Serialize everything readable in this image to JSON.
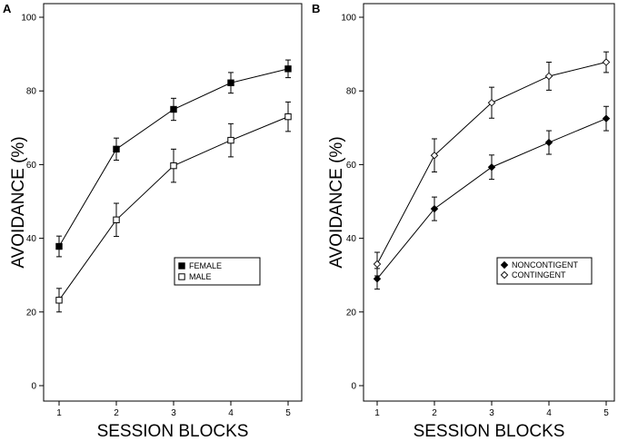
{
  "chart_data": [
    {
      "type": "line",
      "panel_label": "A",
      "xlabel": "SESSION BLOCKS",
      "ylabel": "AVOIDANCE (%)",
      "x": [
        1,
        2,
        3,
        4,
        5
      ],
      "xticks": [
        "1",
        "2",
        "3",
        "4",
        "5"
      ],
      "ylim": [
        0,
        100
      ],
      "yticks": [
        "0",
        "20",
        "40",
        "60",
        "80",
        "100"
      ],
      "legend_position": "lower-right",
      "series": [
        {
          "name": "FEMALE",
          "marker": "filled-square",
          "values": [
            37.8,
            64.2,
            75.0,
            82.2,
            86.0
          ],
          "error": [
            2.8,
            3.0,
            3.0,
            2.8,
            2.4
          ]
        },
        {
          "name": "MALE",
          "marker": "open-square",
          "values": [
            23.2,
            45.0,
            59.7,
            66.6,
            73.0
          ],
          "error": [
            3.2,
            4.5,
            4.5,
            4.5,
            4.0
          ]
        }
      ]
    },
    {
      "type": "line",
      "panel_label": "B",
      "xlabel": "SESSION BLOCKS",
      "ylabel": "AVOIDANCE (%)",
      "x": [
        1,
        2,
        3,
        4,
        5
      ],
      "xticks": [
        "1",
        "2",
        "3",
        "4",
        "5"
      ],
      "ylim": [
        0,
        100
      ],
      "yticks": [
        "0",
        "20",
        "40",
        "60",
        "80",
        "100"
      ],
      "legend_position": "lower-right",
      "series": [
        {
          "name": "NONCONTIGENT",
          "marker": "filled-diamond",
          "values": [
            29.0,
            48.0,
            59.3,
            66.0,
            72.5
          ],
          "error": [
            2.8,
            3.2,
            3.3,
            3.2,
            3.3
          ]
        },
        {
          "name": "CONTINGENT",
          "marker": "open-diamond",
          "values": [
            33.0,
            62.5,
            76.8,
            84.0,
            87.8
          ],
          "error": [
            3.2,
            4.5,
            4.2,
            3.8,
            2.8
          ]
        }
      ]
    }
  ]
}
